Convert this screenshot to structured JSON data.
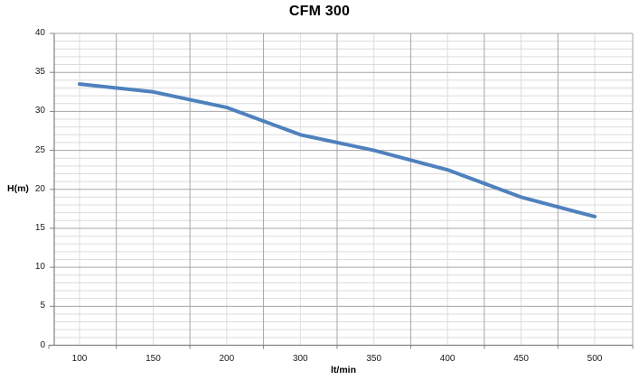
{
  "title": "CFM 300",
  "colors": {
    "line": "#4F81BD",
    "grid_minor": "#dcdcdc",
    "grid_major": "#a6a6a6",
    "axis": "#808080",
    "text": "#1a1a1a"
  },
  "chart_data": {
    "type": "line",
    "title": "CFM 300",
    "xlabel": "lt/min",
    "ylabel": "H(m)",
    "categories": [
      "100",
      "150",
      "200",
      "300",
      "350",
      "400",
      "450",
      "500"
    ],
    "values": [
      33.5,
      32.5,
      30.5,
      27,
      25,
      22.5,
      19,
      16.5
    ],
    "ylim": [
      0,
      40
    ],
    "y_major_step": 5,
    "y_minor_step": 1,
    "y_tick_labels": [
      "0",
      "5",
      "10",
      "15",
      "20",
      "25",
      "30",
      "35",
      "40"
    ],
    "grid": "major+minor",
    "legend_position": "none"
  }
}
